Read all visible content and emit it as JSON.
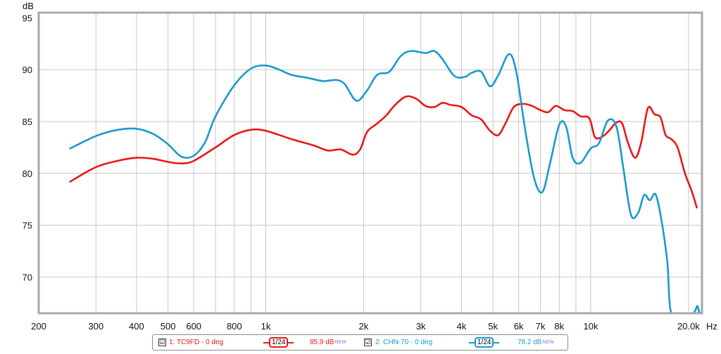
{
  "chart_data": {
    "type": "line",
    "title": "",
    "xlabel": "Hz",
    "ylabel": "dB",
    "xscale": "log",
    "xlim": [
      200,
      22000
    ],
    "ylim": [
      66.5,
      95.5
    ],
    "grid": true,
    "x_tick_labels": [
      {
        "value": 200,
        "label": "200"
      },
      {
        "value": 300,
        "label": "300"
      },
      {
        "value": 400,
        "label": "400"
      },
      {
        "value": 500,
        "label": "500"
      },
      {
        "value": 600,
        "label": "600"
      },
      {
        "value": 800,
        "label": "800"
      },
      {
        "value": 1000,
        "label": "1k"
      },
      {
        "value": 2000,
        "label": "2k"
      },
      {
        "value": 3000,
        "label": "3k"
      },
      {
        "value": 4000,
        "label": "4k"
      },
      {
        "value": 5000,
        "label": "5k"
      },
      {
        "value": 6000,
        "label": "6k"
      },
      {
        "value": 7000,
        "label": "7k"
      },
      {
        "value": 8000,
        "label": "8k"
      },
      {
        "value": 10000,
        "label": "10k"
      },
      {
        "value": 20000,
        "label": "20.0k"
      }
    ],
    "x_gridlines": [
      300,
      400,
      500,
      600,
      700,
      800,
      900,
      1000,
      2000,
      3000,
      4000,
      5000,
      6000,
      7000,
      8000,
      9000,
      10000,
      20000
    ],
    "y_ticks": [
      70,
      75,
      80,
      85,
      90,
      95
    ],
    "y_gridlines": [
      70,
      75,
      80,
      85,
      90
    ],
    "series": [
      {
        "name": "1: TC9FD - 0 deg",
        "color": "#e81818",
        "points": [
          [
            250,
            79.2
          ],
          [
            300,
            80.6
          ],
          [
            350,
            81.2
          ],
          [
            400,
            81.5
          ],
          [
            450,
            81.4
          ],
          [
            500,
            81.1
          ],
          [
            550,
            80.95
          ],
          [
            600,
            81.2
          ],
          [
            700,
            82.5
          ],
          [
            800,
            83.7
          ],
          [
            900,
            84.2
          ],
          [
            1000,
            84.1
          ],
          [
            1200,
            83.3
          ],
          [
            1400,
            82.7
          ],
          [
            1550,
            82.2
          ],
          [
            1700,
            82.3
          ],
          [
            1850,
            81.8
          ],
          [
            1950,
            82.3
          ],
          [
            2050,
            84.0
          ],
          [
            2200,
            84.8
          ],
          [
            2350,
            85.6
          ],
          [
            2500,
            86.6
          ],
          [
            2700,
            87.4
          ],
          [
            2900,
            87.2
          ],
          [
            3100,
            86.5
          ],
          [
            3300,
            86.4
          ],
          [
            3500,
            86.8
          ],
          [
            3700,
            86.6
          ],
          [
            4000,
            86.4
          ],
          [
            4300,
            85.6
          ],
          [
            4600,
            85.2
          ],
          [
            4900,
            84.1
          ],
          [
            5200,
            83.7
          ],
          [
            5500,
            85.0
          ],
          [
            5800,
            86.4
          ],
          [
            6200,
            86.7
          ],
          [
            6600,
            86.5
          ],
          [
            7000,
            86.1
          ],
          [
            7400,
            85.9
          ],
          [
            7800,
            86.5
          ],
          [
            8300,
            86.1
          ],
          [
            8800,
            86.0
          ],
          [
            9300,
            85.5
          ],
          [
            9900,
            85.3
          ],
          [
            10300,
            83.5
          ],
          [
            10800,
            83.5
          ],
          [
            11300,
            84.0
          ],
          [
            12000,
            84.9
          ],
          [
            12500,
            84.8
          ],
          [
            13000,
            83.0
          ],
          [
            13700,
            81.5
          ],
          [
            14300,
            83.0
          ],
          [
            15000,
            86.3
          ],
          [
            15700,
            85.7
          ],
          [
            16400,
            85.4
          ],
          [
            17000,
            83.7
          ],
          [
            17700,
            83.3
          ],
          [
            18500,
            82.5
          ],
          [
            19500,
            80.0
          ],
          [
            20500,
            78.2
          ],
          [
            21200,
            76.7
          ]
        ]
      },
      {
        "name": "2: CHN-70 - 0 deg",
        "color": "#1a9acd",
        "points": [
          [
            250,
            82.4
          ],
          [
            300,
            83.6
          ],
          [
            350,
            84.2
          ],
          [
            400,
            84.3
          ],
          [
            450,
            83.8
          ],
          [
            500,
            82.8
          ],
          [
            550,
            81.6
          ],
          [
            600,
            81.7
          ],
          [
            650,
            83.0
          ],
          [
            700,
            85.5
          ],
          [
            800,
            88.5
          ],
          [
            900,
            90.1
          ],
          [
            1000,
            90.4
          ],
          [
            1100,
            90.0
          ],
          [
            1200,
            89.5
          ],
          [
            1350,
            89.2
          ],
          [
            1500,
            88.9
          ],
          [
            1650,
            89.0
          ],
          [
            1750,
            88.6
          ],
          [
            1900,
            87.0
          ],
          [
            2050,
            88.0
          ],
          [
            2200,
            89.5
          ],
          [
            2400,
            89.8
          ],
          [
            2600,
            91.3
          ],
          [
            2800,
            91.8
          ],
          [
            3100,
            91.6
          ],
          [
            3300,
            91.8
          ],
          [
            3500,
            91.0
          ],
          [
            3800,
            89.4
          ],
          [
            4100,
            89.3
          ],
          [
            4300,
            89.7
          ],
          [
            4600,
            89.8
          ],
          [
            4900,
            88.4
          ],
          [
            5200,
            89.5
          ],
          [
            5600,
            91.5
          ],
          [
            5900,
            89.8
          ],
          [
            6300,
            84.0
          ],
          [
            6700,
            79.5
          ],
          [
            7100,
            78.2
          ],
          [
            7500,
            81.0
          ],
          [
            8000,
            84.7
          ],
          [
            8400,
            84.5
          ],
          [
            8800,
            81.5
          ],
          [
            9300,
            81.0
          ],
          [
            10000,
            82.4
          ],
          [
            10600,
            82.9
          ],
          [
            11300,
            85.1
          ],
          [
            12000,
            84.5
          ],
          [
            12600,
            80.5
          ],
          [
            13300,
            76.0
          ],
          [
            14000,
            76.2
          ],
          [
            14600,
            77.9
          ],
          [
            15200,
            77.4
          ],
          [
            15800,
            78.0
          ],
          [
            16400,
            76.0
          ],
          [
            17200,
            71.5
          ],
          [
            17700,
            66.5
          ],
          [
            19500,
            66.5
          ],
          [
            20500,
            66.4
          ],
          [
            21000,
            66.8
          ],
          [
            21300,
            67.2
          ],
          [
            21600,
            66.6
          ],
          [
            22000,
            66.5
          ]
        ]
      }
    ],
    "legend": {
      "placement": "bottom",
      "entries": [
        {
          "checkbox": "☑",
          "name": "1: TC9FD - 0 deg",
          "smoothing": "1/24",
          "value": "85.9 dB",
          "badge": "NEW",
          "color": "#e81818"
        },
        {
          "checkbox": "☑",
          "name": "2: CHN-70 - 0 deg",
          "smoothing": "1/24",
          "value": "78.2 dB",
          "badge": "NEW",
          "color": "#1a9acd"
        }
      ]
    }
  },
  "colors": {
    "grid": "#c8c8c8",
    "frame": "#a8a8a8",
    "series1": "#e81818",
    "series2": "#1a9acd"
  }
}
